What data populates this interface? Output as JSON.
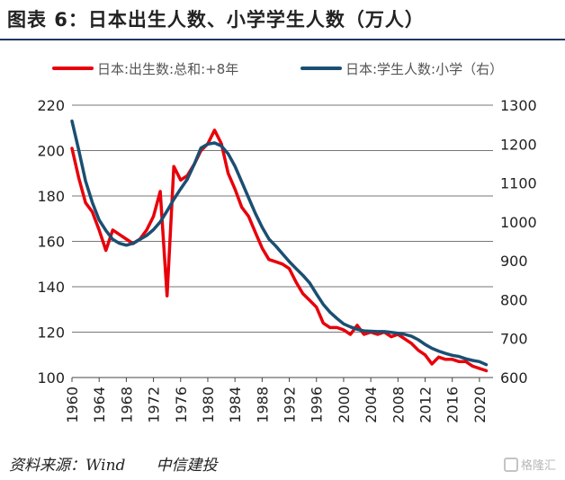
{
  "title": "图表 6：日本出生人数、小学学生人数（万人）",
  "source": "资料来源：Wind　　中信建投",
  "watermark": "格隆汇",
  "colors": {
    "red": "#e8000b",
    "navy": "#1b4f72",
    "rule": "#1f3864"
  },
  "chart_data": {
    "type": "line",
    "legend_position": "top",
    "grid": "horizontal",
    "x_ticks": [
      "1960",
      "1964",
      "1968",
      "1972",
      "1976",
      "1980",
      "1984",
      "1988",
      "1992",
      "1996",
      "2000",
      "2004",
      "2008",
      "2012",
      "2016",
      "2020"
    ],
    "y_left": {
      "min": 100,
      "max": 220,
      "ticks": [
        100,
        120,
        140,
        160,
        180,
        200,
        220
      ]
    },
    "y_right": {
      "min": 600,
      "max": 1300,
      "ticks": [
        600,
        700,
        800,
        900,
        1000,
        1100,
        1200,
        1300
      ]
    },
    "series": [
      {
        "name": "日本:出生数:总和:+8年",
        "axis": "left",
        "color": "#e8000b",
        "x": [
          1960,
          1961,
          1962,
          1963,
          1964,
          1965,
          1966,
          1967,
          1968,
          1969,
          1970,
          1971,
          1972,
          1973,
          1974,
          1975,
          1976,
          1977,
          1978,
          1979,
          1980,
          1981,
          1982,
          1983,
          1984,
          1985,
          1986,
          1987,
          1988,
          1989,
          1990,
          1991,
          1992,
          1993,
          1994,
          1995,
          1996,
          1997,
          1998,
          1999,
          2000,
          2001,
          2002,
          2003,
          2004,
          2005,
          2006,
          2007,
          2008,
          2009,
          2010,
          2011,
          2012,
          2013,
          2014,
          2015,
          2016,
          2017,
          2018,
          2019,
          2020,
          2021
        ],
        "values": [
          201,
          188,
          177,
          173,
          165,
          156,
          165,
          163,
          161,
          159,
          161,
          165,
          171,
          182,
          136,
          193,
          187,
          189,
          194,
          200,
          203,
          209,
          203,
          190,
          183,
          175,
          171,
          164,
          157,
          152,
          151,
          150,
          148,
          142,
          137,
          134,
          131,
          124,
          122,
          122,
          121,
          119,
          123,
          119,
          120,
          119,
          120,
          118,
          119,
          117,
          115,
          112,
          110,
          106,
          109,
          108,
          108,
          107,
          107,
          105,
          104,
          103
        ]
      },
      {
        "name": "日本:学生人数:小学（右）",
        "axis": "right",
        "color": "#1b4f72",
        "x": [
          1960,
          1961,
          1962,
          1963,
          1964,
          1965,
          1966,
          1967,
          1968,
          1969,
          1970,
          1971,
          1972,
          1973,
          1974,
          1975,
          1976,
          1977,
          1978,
          1979,
          1980,
          1981,
          1982,
          1983,
          1984,
          1985,
          1986,
          1987,
          1988,
          1989,
          1990,
          1991,
          1992,
          1993,
          1994,
          1995,
          1996,
          1997,
          1998,
          1999,
          2000,
          2001,
          2002,
          2003,
          2004,
          2005,
          2006,
          2007,
          2008,
          2009,
          2010,
          2011,
          2012,
          2013,
          2014,
          2015,
          2016,
          2017,
          2018,
          2019,
          2020,
          2021
        ],
        "values": [
          1259,
          1185,
          1105,
          1050,
          1005,
          978,
          955,
          945,
          940,
          945,
          955,
          965,
          980,
          1000,
          1028,
          1058,
          1085,
          1110,
          1148,
          1190,
          1200,
          1203,
          1195,
          1175,
          1143,
          1103,
          1062,
          1022,
          986,
          956,
          938,
          918,
          898,
          880,
          863,
          843,
          815,
          788,
          768,
          752,
          738,
          730,
          724,
          720,
          719,
          718,
          718,
          716,
          714,
          711,
          706,
          697,
          685,
          675,
          668,
          662,
          657,
          654,
          648,
          644,
          641,
          633
        ]
      }
    ]
  }
}
